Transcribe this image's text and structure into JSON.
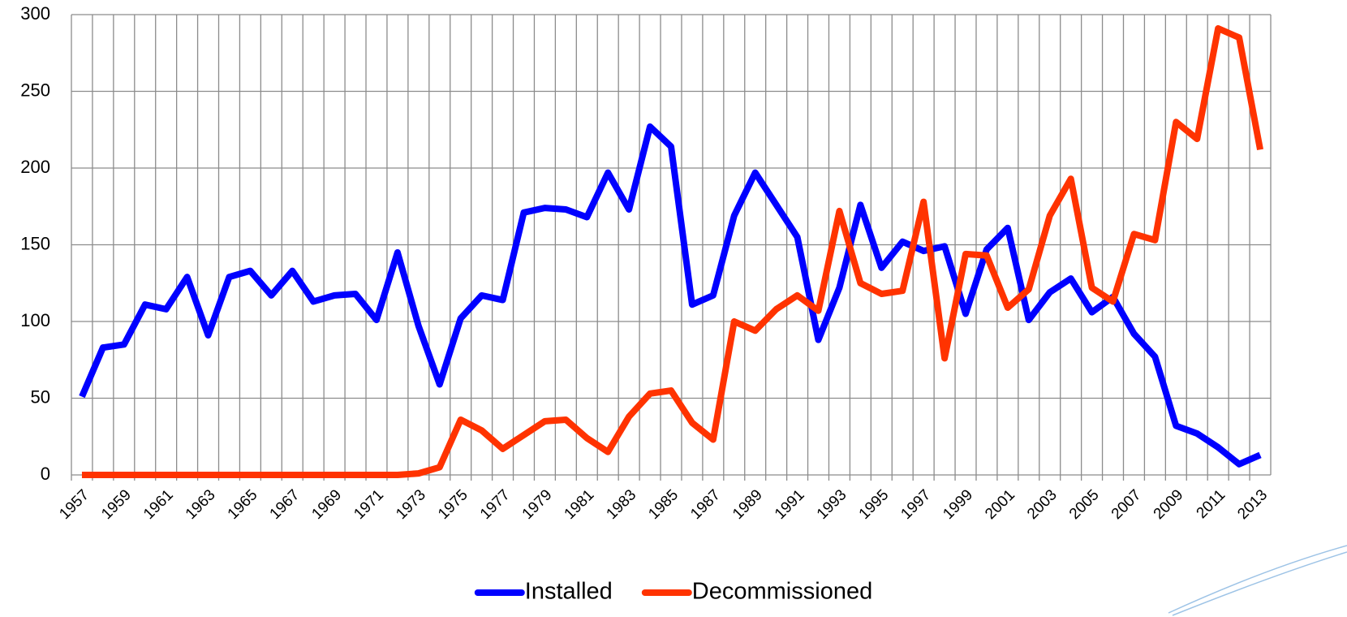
{
  "chart_data": {
    "type": "line",
    "categories": [
      "1957",
      null,
      "1959",
      null,
      "1961",
      null,
      "1963",
      null,
      "1965",
      null,
      "1967",
      null,
      "1969",
      null,
      "1971",
      null,
      "1973",
      null,
      "1975",
      null,
      "1977",
      null,
      "1979",
      null,
      "1981",
      null,
      "1983",
      null,
      "1985",
      null,
      "1987",
      null,
      "1989",
      null,
      "1991",
      null,
      "1993",
      null,
      "1995",
      null,
      "1997",
      null,
      "1999",
      null,
      "2001",
      null,
      "2003",
      null,
      "2005",
      null,
      "2007",
      null,
      "2009",
      null,
      "2011",
      null,
      "2013"
    ],
    "series": [
      {
        "name": "Installed",
        "color": "#0000ff",
        "values": [
          51,
          83,
          85,
          111,
          108,
          129,
          91,
          129,
          133,
          117,
          133,
          113,
          117,
          118,
          101,
          145,
          97,
          59,
          102,
          117,
          114,
          171,
          174,
          173,
          168,
          197,
          173,
          227,
          214,
          111,
          117,
          169,
          197,
          176,
          155,
          88,
          122,
          176,
          135,
          152,
          146,
          149,
          105,
          147,
          161,
          101,
          119,
          128,
          106,
          116,
          92,
          77,
          32,
          27,
          18,
          7,
          13
        ]
      },
      {
        "name": "Decommissioned",
        "color": "#ff3300",
        "values": [
          0,
          0,
          0,
          0,
          0,
          0,
          0,
          0,
          0,
          0,
          0,
          0,
          0,
          0,
          0,
          0,
          1,
          5,
          36,
          29,
          17,
          26,
          35,
          36,
          24,
          15,
          38,
          53,
          55,
          34,
          23,
          100,
          94,
          108,
          117,
          107,
          172,
          125,
          118,
          120,
          178,
          76,
          144,
          143,
          109,
          121,
          169,
          193,
          122,
          113,
          157,
          153,
          230,
          219,
          291,
          285,
          212
        ]
      }
    ],
    "ylim": [
      0,
      300
    ],
    "yticks": [
      0,
      50,
      100,
      150,
      200,
      250,
      300
    ],
    "grid": true,
    "legend": "bottom"
  }
}
